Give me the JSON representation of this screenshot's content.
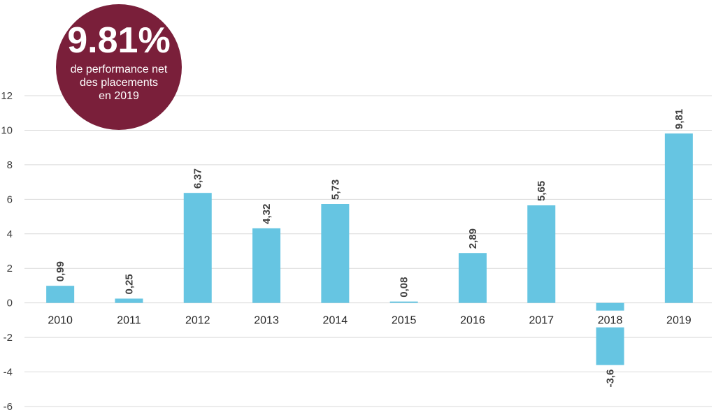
{
  "badge": {
    "value": "9.81%",
    "text_lines": [
      "de performance net",
      "des placements",
      "en 2019"
    ],
    "color": "#7a1f3a"
  },
  "chart_data": {
    "type": "bar",
    "title": "",
    "xlabel": "",
    "ylabel": "",
    "categories": [
      "2010",
      "2011",
      "2012",
      "2013",
      "2014",
      "2015",
      "2016",
      "2017",
      "2018",
      "2019"
    ],
    "values": [
      0.99,
      0.25,
      6.37,
      4.32,
      5.73,
      0.08,
      2.89,
      5.65,
      -3.6,
      9.81
    ],
    "value_labels": [
      "0,99",
      "0,25",
      "6,37",
      "4,32",
      "5,73",
      "0,08",
      "2,89",
      "5,65",
      "-3,6",
      "9,81"
    ],
    "ylim": [
      -6,
      12
    ],
    "yticks": [
      12,
      10,
      8,
      6,
      4,
      2,
      0,
      -2,
      -4,
      -6
    ],
    "grid": true,
    "bar_color": "#66c5e2",
    "grid_color": "#d9d9d9",
    "label_color": "#404040"
  }
}
